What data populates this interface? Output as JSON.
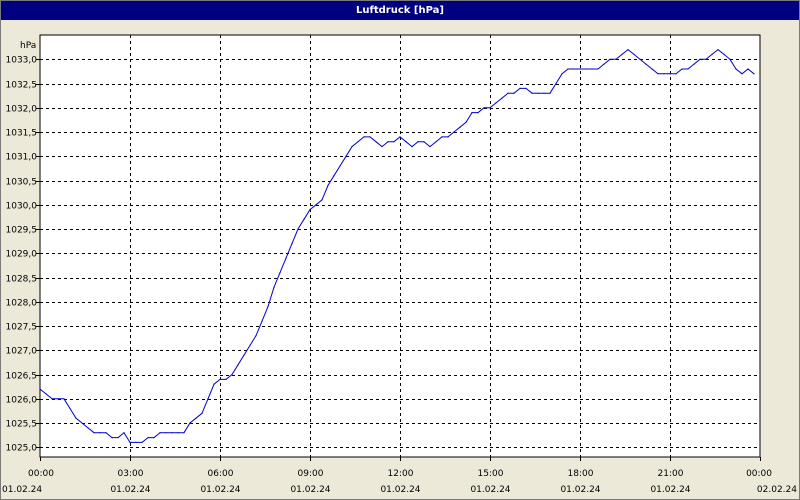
{
  "window": {
    "title": "Luftdruck [hPa]"
  },
  "chart_data": {
    "type": "line",
    "title": "Luftdruck [hPa]",
    "ylabel": "hPa",
    "xlabel": "",
    "grid": true,
    "line_color": "#0000cc",
    "plot_background": "#ffffff",
    "xlim_hours": [
      0,
      24
    ],
    "ylim": [
      1024.8,
      1033.5
    ],
    "yticks": [
      "1025,0",
      "1025,5",
      "1026,0",
      "1026,5",
      "1027,0",
      "1027,5",
      "1028,0",
      "1028,5",
      "1029,0",
      "1029,5",
      "1030,0",
      "1030,5",
      "1031,0",
      "1031,5",
      "1032,0",
      "1032,5",
      "1033,0"
    ],
    "ytick_values": [
      1025.0,
      1025.5,
      1026.0,
      1026.5,
      1027.0,
      1027.5,
      1028.0,
      1028.5,
      1029.0,
      1029.5,
      1030.0,
      1030.5,
      1031.0,
      1031.5,
      1032.0,
      1032.5,
      1033.0
    ],
    "xticks": [
      {
        "time": "00:00",
        "date": "01.02.24"
      },
      {
        "time": "03:00",
        "date": "01.02.24"
      },
      {
        "time": "06:00",
        "date": "01.02.24"
      },
      {
        "time": "09:00",
        "date": "01.02.24"
      },
      {
        "time": "12:00",
        "date": "01.02.24"
      },
      {
        "time": "15:00",
        "date": "01.02.24"
      },
      {
        "time": "18:00",
        "date": "01.02.24"
      },
      {
        "time": "21:00",
        "date": "01.02.24"
      },
      {
        "time": "00:00",
        "date": "02.02.24"
      }
    ],
    "xtick_hours": [
      0,
      3,
      6,
      9,
      12,
      15,
      18,
      21,
      24
    ],
    "series": [
      {
        "x": [
          0,
          0.2,
          0.4,
          0.6,
          0.8,
          1.0,
          1.2,
          1.4,
          1.6,
          1.8,
          2.0,
          2.2,
          2.4,
          2.6,
          2.8,
          3.0,
          3.2,
          3.4,
          3.6,
          3.8,
          4.0,
          4.2,
          4.4,
          4.6,
          4.8,
          5.0,
          5.2,
          5.4,
          5.6,
          5.8,
          6.0,
          6.2,
          6.4,
          6.6,
          6.8,
          7.0,
          7.2,
          7.4,
          7.6,
          7.8,
          8.0,
          8.2,
          8.4,
          8.6,
          8.8,
          9.0,
          9.2,
          9.4,
          9.6,
          9.8,
          10.0,
          10.2,
          10.4,
          10.6,
          10.8,
          11.0,
          11.2,
          11.4,
          11.6,
          11.8,
          12.0,
          12.2,
          12.4,
          12.6,
          12.8,
          13.0,
          13.2,
          13.4,
          13.6,
          13.8,
          14.0,
          14.2,
          14.4,
          14.6,
          14.8,
          15.0,
          15.2,
          15.4,
          15.6,
          15.8,
          16.0,
          16.2,
          16.4,
          16.6,
          16.8,
          17.0,
          17.2,
          17.4,
          17.6,
          17.8,
          18.0,
          18.2,
          18.4,
          18.6,
          18.8,
          19.0,
          19.2,
          19.4,
          19.6,
          19.8,
          20.0,
          20.2,
          20.4,
          20.6,
          20.8,
          21.0,
          21.2,
          21.4,
          21.6,
          21.8,
          22.0,
          22.2,
          22.4,
          22.6,
          22.8,
          23.0,
          23.2,
          23.4,
          23.6,
          23.8
        ],
        "values": [
          1026.2,
          1026.1,
          1026.0,
          1026.0,
          1026.0,
          1025.8,
          1025.6,
          1025.5,
          1025.4,
          1025.3,
          1025.3,
          1025.3,
          1025.2,
          1025.2,
          1025.3,
          1025.1,
          1025.1,
          1025.1,
          1025.2,
          1025.2,
          1025.3,
          1025.3,
          1025.3,
          1025.3,
          1025.3,
          1025.5,
          1025.6,
          1025.7,
          1026.0,
          1026.3,
          1026.4,
          1026.4,
          1026.5,
          1026.7,
          1026.9,
          1027.1,
          1027.3,
          1027.6,
          1027.9,
          1028.3,
          1028.6,
          1028.9,
          1029.2,
          1029.5,
          1029.7,
          1029.9,
          1030.0,
          1030.1,
          1030.4,
          1030.6,
          1030.8,
          1031.0,
          1031.2,
          1031.3,
          1031.4,
          1031.4,
          1031.3,
          1031.2,
          1031.3,
          1031.3,
          1031.4,
          1031.3,
          1031.2,
          1031.3,
          1031.3,
          1031.2,
          1031.3,
          1031.4,
          1031.4,
          1031.5,
          1031.6,
          1031.7,
          1031.9,
          1031.9,
          1032.0,
          1032.0,
          1032.1,
          1032.2,
          1032.3,
          1032.3,
          1032.4,
          1032.4,
          1032.3,
          1032.3,
          1032.3,
          1032.3,
          1032.5,
          1032.7,
          1032.8,
          1032.8,
          1032.8,
          1032.8,
          1032.8,
          1032.8,
          1032.9,
          1033.0,
          1033.0,
          1033.1,
          1033.2,
          1033.1,
          1033.0,
          1032.9,
          1032.8,
          1032.7,
          1032.7,
          1032.7,
          1032.7,
          1032.8,
          1032.8,
          1032.9,
          1033.0,
          1033.0,
          1033.1,
          1033.2,
          1033.1,
          1033.0,
          1032.8,
          1032.7,
          1032.8,
          1032.7
        ]
      }
    ]
  }
}
